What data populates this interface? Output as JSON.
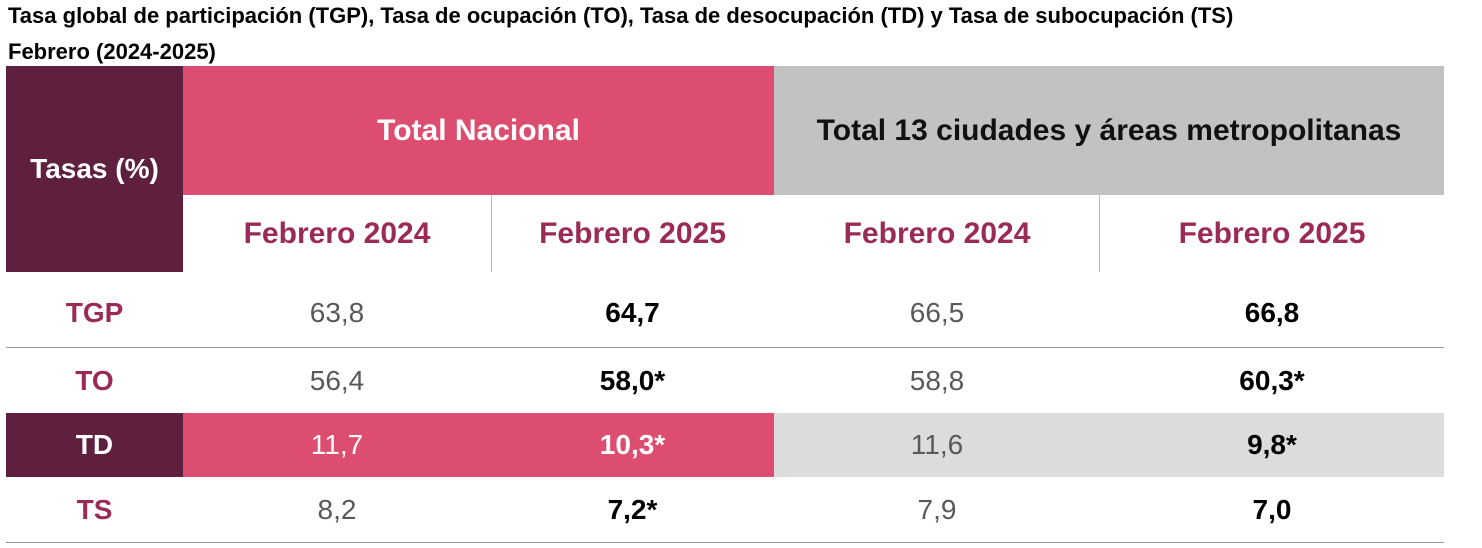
{
  "title_line1": "Tasa global de participación (TGP), Tasa de ocupación (TO), Tasa de desocupación (TD) y Tasa de subocupación (TS)",
  "title_line2": "Febrero (2024-2025)",
  "header": {
    "tasas": "Tasas (%)",
    "group_nacional": "Total Nacional",
    "group_13": "Total 13 ciudades y áreas metropolitanas",
    "sub": [
      "Febrero 2024",
      "Febrero 2025",
      "Febrero 2024",
      "Febrero 2025"
    ]
  },
  "rows": [
    {
      "label": "TGP",
      "v": [
        "63,8",
        "64,7",
        "66,5",
        "66,8"
      ]
    },
    {
      "label": "TO",
      "v": [
        "56,4",
        "58,0*",
        "58,8",
        "60,3*"
      ]
    },
    {
      "label": "TD",
      "v": [
        "11,7",
        "10,3*",
        "11,6",
        "9,8*"
      ]
    },
    {
      "label": "TS",
      "v": [
        "8,2",
        "7,2*",
        "7,9",
        "7,0"
      ]
    }
  ],
  "colors": {
    "plum": "#5f1f3e",
    "pink": "#dd4d6f",
    "grey": "#c2c2c2",
    "light_grey": "#dcdcdc",
    "label_text": "#9b2b56"
  }
}
